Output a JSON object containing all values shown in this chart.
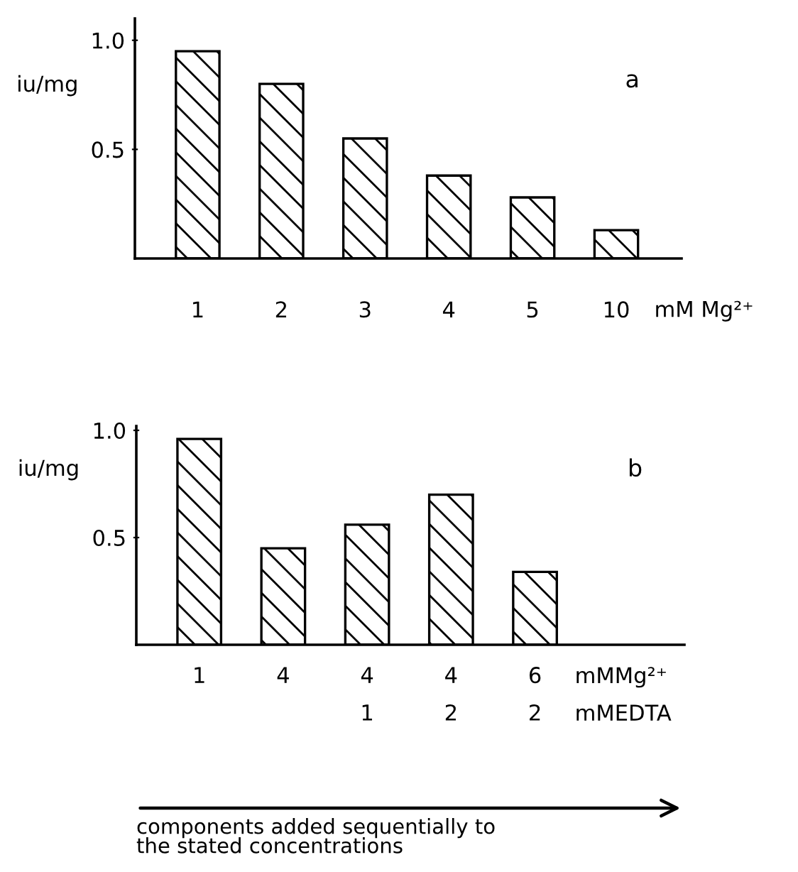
{
  "chart_data": [
    {
      "type": "bar",
      "categories": [
        "1",
        "2",
        "3",
        "4",
        "5",
        "10"
      ],
      "values": [
        0.95,
        0.8,
        0.55,
        0.38,
        0.28,
        0.13
      ],
      "color": "#000000",
      "xlabel": "mM Mg²⁺",
      "ylabel": "iu/mg",
      "ylim": [
        0,
        1.1
      ],
      "yticks": [
        0.5,
        {
          "value": 1.0,
          "label": "1.0"
        }
      ],
      "grid": false,
      "legend": false,
      "annotations": [
        "a"
      ]
    },
    {
      "type": "bar",
      "categories": [
        "1",
        "4",
        "4\n1",
        "4\n2",
        "6\n2"
      ],
      "values": [
        0.96,
        0.45,
        0.56,
        0.7,
        0.34
      ],
      "color": "#000000",
      "xlabel": "mMMg²⁺\nmMEDTA",
      "ylabel": "iu/mg",
      "ylim": [
        0,
        1.02
      ],
      "yticks": [
        0.5,
        {
          "value": 1.0,
          "label": "1.0"
        }
      ],
      "grid": false,
      "legend": false,
      "annotations": [
        "b",
        "components added sequentially to\nthe stated concentrations"
      ]
    }
  ]
}
